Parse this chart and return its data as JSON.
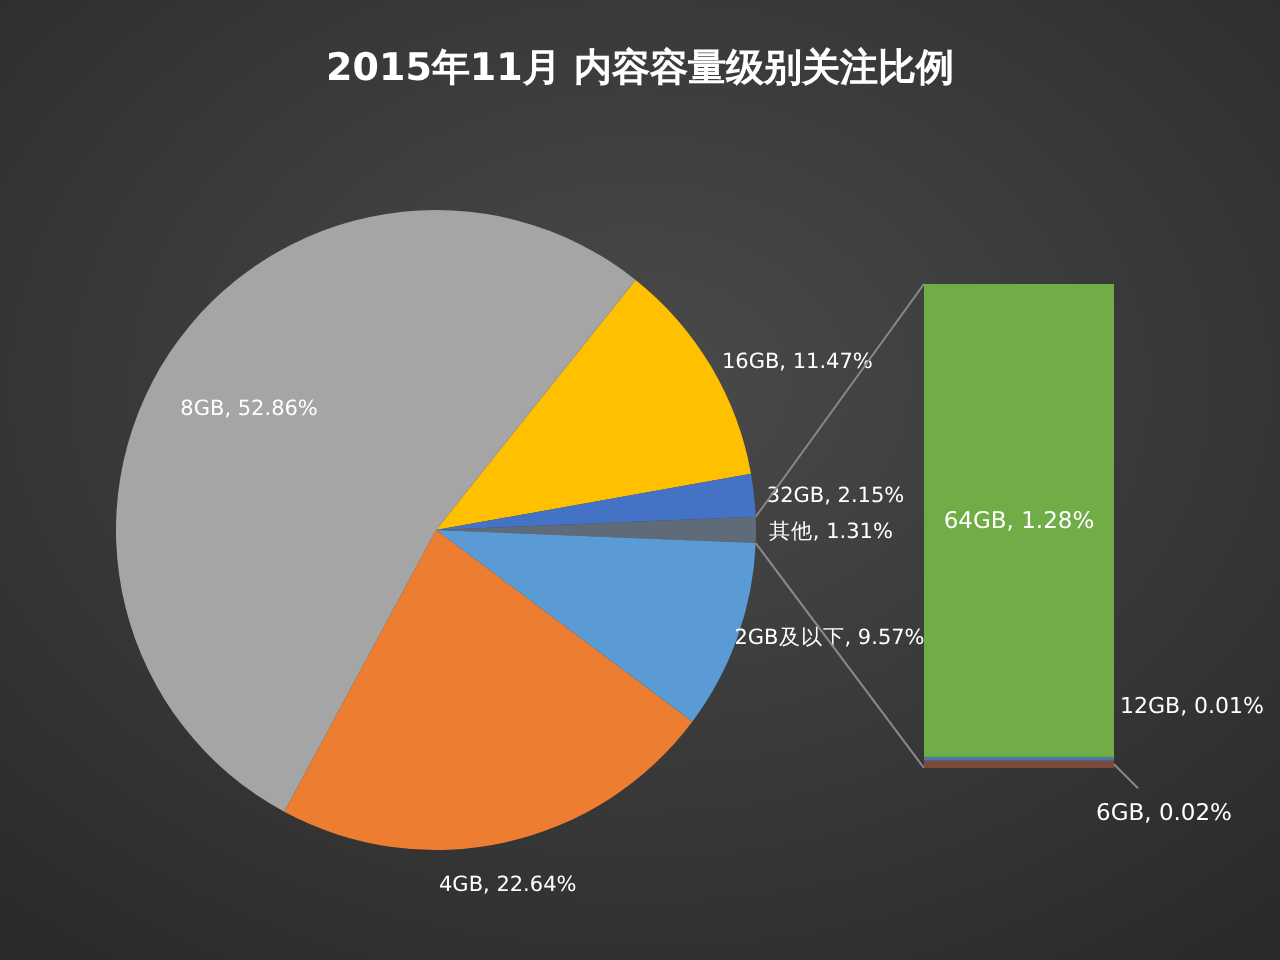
{
  "chart_data": [
    {
      "type": "pie",
      "title": "2015年11月  内容容量级别关注比例",
      "categories": [
        "16GB",
        "32GB",
        "其他",
        "2GB及以下",
        "4GB",
        "8GB"
      ],
      "values": [
        11.47,
        2.15,
        1.31,
        9.57,
        22.64,
        52.86
      ],
      "colors": [
        "#ffc000",
        "#4472c4",
        "#5f6b78",
        "#5b9bd5",
        "#ed7d31",
        "#a5a5a5"
      ],
      "value_labels": [
        "11.47%",
        "2.15%",
        "1.31%",
        "9.57%",
        "22.64%",
        "52.86%"
      ]
    },
    {
      "type": "other",
      "values": [
        1.28,
        0.01,
        0.02
      ],
      "colors": [
        "#70ad47",
        "#4a7aaa",
        "#7b4a3a"
      ],
      "value_labels": [
        "64GB, 1.28%",
        "12GB, 0.01%",
        "6GB, 0.02%"
      ]
    }
  ]
}
